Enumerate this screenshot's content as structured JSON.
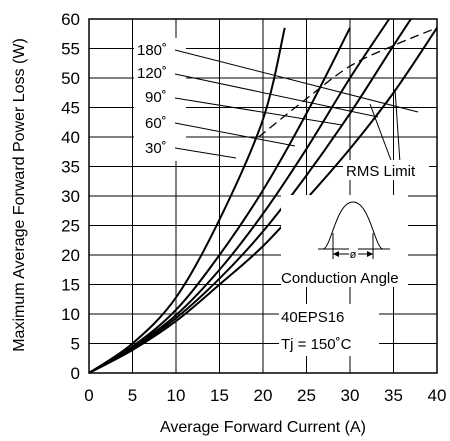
{
  "chart_data": {
    "type": "line",
    "title": "",
    "xlabel": "Average Forward Current (A)",
    "ylabel": "Maximum Average Forward Power Loss (W)",
    "xlim": [
      0,
      40
    ],
    "ylim": [
      0,
      60
    ],
    "x_ticks": [
      "0",
      "5",
      "10",
      "15",
      "20",
      "25",
      "30",
      "35",
      "40"
    ],
    "y_ticks": [
      "0",
      "5",
      "10",
      "15",
      "20",
      "25",
      "30",
      "35",
      "40",
      "45",
      "50",
      "55",
      "60"
    ],
    "grid": true,
    "series": [
      {
        "name": "30°",
        "points": [
          [
            0,
            0
          ],
          [
            5,
            5
          ],
          [
            10,
            12.8
          ],
          [
            15,
            26
          ],
          [
            20,
            43
          ],
          [
            22.5,
            58.5
          ]
        ]
      },
      {
        "name": "60°",
        "points": [
          [
            0,
            0
          ],
          [
            5,
            4.5
          ],
          [
            10,
            10.7
          ],
          [
            15,
            20
          ],
          [
            20,
            31
          ],
          [
            25,
            44
          ],
          [
            30,
            58.5
          ]
        ]
      },
      {
        "name": "90°",
        "points": [
          [
            0,
            0
          ],
          [
            5,
            4.3
          ],
          [
            10,
            9.8
          ],
          [
            15,
            17.5
          ],
          [
            20,
            27
          ],
          [
            25,
            38
          ],
          [
            30,
            50
          ],
          [
            34.5,
            60
          ]
        ]
      },
      {
        "name": "120°",
        "points": [
          [
            0,
            0
          ],
          [
            5,
            4.1
          ],
          [
            10,
            9.3
          ],
          [
            15,
            16
          ],
          [
            20,
            24
          ],
          [
            25,
            33.5
          ],
          [
            30,
            44
          ],
          [
            35,
            55.5
          ],
          [
            37,
            60
          ]
        ]
      },
      {
        "name": "180°",
        "points": [
          [
            0,
            0
          ],
          [
            5,
            3.9
          ],
          [
            10,
            8.8
          ],
          [
            15,
            15
          ],
          [
            20,
            21.5
          ],
          [
            25,
            29.5
          ],
          [
            30,
            38
          ],
          [
            35,
            47.5
          ],
          [
            40,
            58.5
          ]
        ]
      }
    ],
    "rms_limit": {
      "name": "RMS Limit",
      "points": [
        [
          19.5,
          40
        ],
        [
          25,
          46.5
        ],
        [
          30,
          52
        ],
        [
          35,
          55.5
        ],
        [
          40,
          58.5
        ]
      ]
    },
    "annotations": {
      "rms_label": "RMS Limit",
      "conduction_label": "Conduction Angle",
      "phi_label": "ø",
      "device": "40EPS16",
      "tj": "Tj = 150˚C"
    },
    "curve_labels": [
      "180˚",
      "120˚",
      "90˚",
      "60˚",
      "30˚"
    ]
  }
}
